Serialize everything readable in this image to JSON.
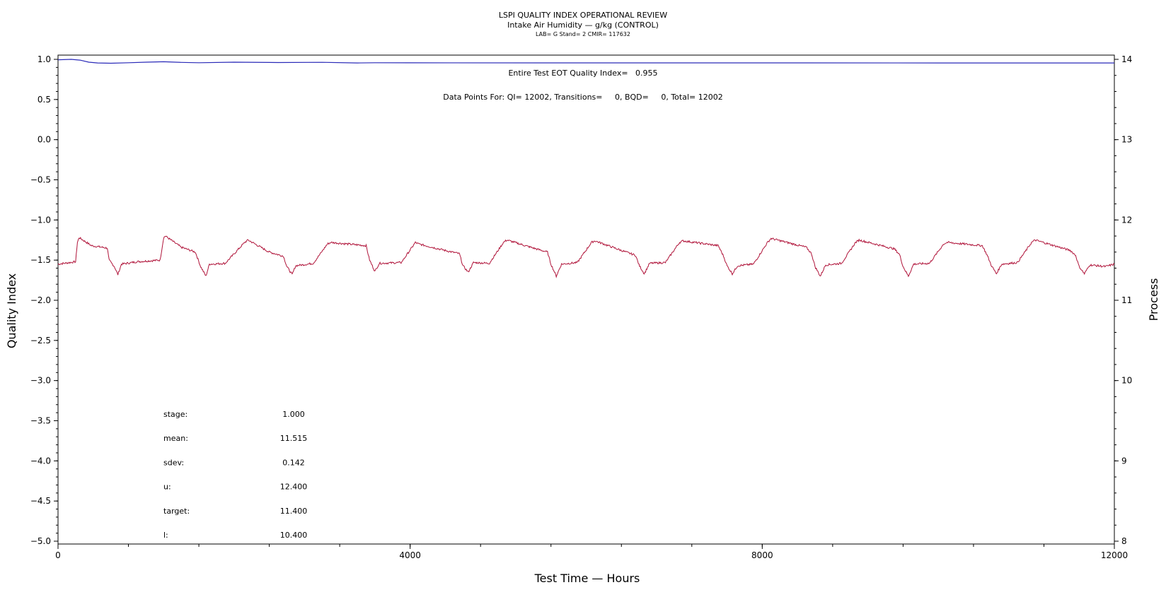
{
  "chart_data": {
    "type": "line",
    "title": "LSPI QUALITY INDEX OPERATIONAL REVIEW",
    "subtitle": "Intake Air Humidity — g/kg (CONTROL)",
    "subtitle2": "LAB= G Stand= 2 CMIR= 117632",
    "xlabel": "Test Time — Hours",
    "ylabel_left": "Quality Index",
    "ylabel_right": "Process",
    "xlim": [
      0,
      12000
    ],
    "ylim_left": [
      -5.0,
      1.0
    ],
    "ylim_right": [
      8,
      14
    ],
    "x_ticks": [
      "0",
      "4000",
      "8000",
      "12000"
    ],
    "y_left_ticks": [
      "1.0",
      "0.5",
      "0.0",
      "−0.5",
      "−1.0",
      "−1.5",
      "−2.0",
      "−2.5",
      "−3.0",
      "−3.5",
      "−4.0",
      "−4.5",
      "−5.0"
    ],
    "y_right_ticks": [
      "14",
      "13",
      "12",
      "11",
      "10",
      "9",
      "8"
    ],
    "annotation_qi": "Entire Test EOT Quality Index=   0.955",
    "annotation_points": "Data Points For: QI= 12002, Transitions=     0, BQD=     0, Total= 12002",
    "stats": [
      {
        "label": "stage:",
        "value": "1.000"
      },
      {
        "label": "mean:",
        "value": "11.515"
      },
      {
        "label": "sdev:",
        "value": "0.142"
      },
      {
        "label": "u:",
        "value": "12.400"
      },
      {
        "label": "target:",
        "value": "11.400"
      },
      {
        "label": "l:",
        "value": "10.400"
      }
    ],
    "series": [
      {
        "axis": "left",
        "color": "#2a2ab8",
        "x": [
          0,
          150,
          250,
          350,
          450,
          600,
          800,
          1000,
          1200,
          1400,
          1600,
          2000,
          2500,
          3000,
          3400,
          3600,
          4000,
          6000,
          8000,
          10000,
          12000
        ],
        "values": [
          0.995,
          1.0,
          0.99,
          0.965,
          0.955,
          0.952,
          0.958,
          0.965,
          0.97,
          0.962,
          0.958,
          0.965,
          0.96,
          0.963,
          0.955,
          0.958,
          0.957,
          0.956,
          0.956,
          0.955,
          0.955
        ]
      },
      {
        "axis": "right",
        "color": "#b0143a",
        "cycle_period_hours": 1000,
        "x": [
          0,
          200,
          220,
          240,
          380,
          560,
          580,
          640,
          680,
          720,
          900,
          1160,
          1200,
          1220,
          1400,
          1560,
          1620,
          1680,
          1720,
          1900,
          2120,
          2160,
          2400,
          2560,
          2600,
          2660,
          2700,
          2900,
          3060,
          3100,
          3500,
          3540,
          3600,
          3650,
          3900,
          4060,
          4100,
          4400,
          4560,
          4600,
          4660,
          4720,
          4900,
          5060,
          5100,
          5400,
          5560,
          5600,
          5660,
          5720,
          5900,
          6060,
          6100,
          6400,
          6560,
          6600,
          6660,
          6720,
          6900,
          7060,
          7100,
          7500,
          7560,
          7600,
          7660,
          7720,
          7900,
          8060,
          8100,
          8500,
          8560,
          8600,
          8660,
          8720,
          8900,
          9060,
          9100,
          9500,
          9560,
          9600,
          9660,
          9720,
          9900,
          10060,
          10100,
          10500,
          10560,
          10600,
          10660,
          10720,
          10900,
          11060,
          11100,
          11500,
          11560,
          11600,
          11660,
          11720,
          11900,
          12000
        ],
        "values": [
          11.45,
          11.48,
          11.72,
          11.78,
          11.68,
          11.65,
          11.5,
          11.42,
          11.32,
          11.45,
          11.48,
          11.5,
          11.78,
          11.8,
          11.66,
          11.6,
          11.42,
          11.3,
          11.45,
          11.46,
          11.72,
          11.75,
          11.6,
          11.55,
          11.42,
          11.32,
          11.43,
          11.46,
          11.7,
          11.72,
          11.68,
          11.5,
          11.36,
          11.46,
          11.47,
          11.72,
          11.7,
          11.62,
          11.58,
          11.43,
          11.35,
          11.47,
          11.46,
          11.72,
          11.75,
          11.65,
          11.6,
          11.45,
          11.3,
          11.45,
          11.47,
          11.72,
          11.74,
          11.62,
          11.56,
          11.44,
          11.33,
          11.46,
          11.47,
          11.72,
          11.74,
          11.68,
          11.55,
          11.43,
          11.33,
          11.43,
          11.45,
          11.72,
          11.77,
          11.66,
          11.58,
          11.42,
          11.3,
          11.44,
          11.46,
          11.72,
          11.75,
          11.64,
          11.57,
          11.42,
          11.3,
          11.45,
          11.46,
          11.7,
          11.72,
          11.68,
          11.55,
          11.44,
          11.33,
          11.45,
          11.47,
          11.72,
          11.75,
          11.62,
          11.56,
          11.42,
          11.33,
          11.44,
          11.42,
          11.45
        ]
      }
    ],
    "grid": false,
    "legend": "none"
  }
}
